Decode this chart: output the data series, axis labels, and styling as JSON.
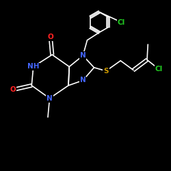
{
  "bg": "#000000",
  "atom_colors": {
    "C": "#ffffff",
    "N": "#4466ff",
    "O": "#ff2222",
    "S": "#cc9900",
    "Cl": "#22cc22",
    "H": "#ffffff"
  },
  "bond_color": "#ffffff",
  "font_size": 7.5,
  "lw": 1.2
}
